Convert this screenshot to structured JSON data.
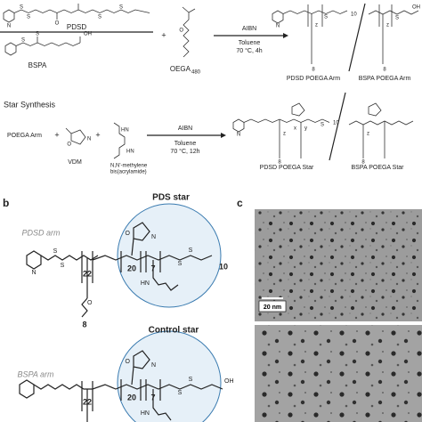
{
  "atoms": {
    "S": "S",
    "O": "O",
    "N": "N",
    "HN": "HN",
    "OH": "OH"
  },
  "panel_a": {
    "arm_synthesis": {
      "reagents": {
        "pdsd": "PDSD",
        "bspa": "BSPA",
        "oega": "OEGA",
        "oega_subscript": "480",
        "plus": "+"
      },
      "conditions": [
        "AIBN",
        "Toluene",
        "70 °C, 4h"
      ],
      "products": [
        "PDSD POEGA Arm",
        "BSPA POEGA Arm"
      ],
      "repeat_labels": {
        "pdsd_end": "10",
        "z": "z",
        "eg": "8"
      }
    },
    "star_synthesis": {
      "title": "Star Synthesis",
      "reactants": [
        "POEGA Arm",
        "VDM",
        "N,N'-methylene",
        "bis(acrylamide)"
      ],
      "plus": "+",
      "conditions": [
        "AIBN",
        "Toluene",
        "70 °C, 12h"
      ],
      "products": [
        "PDSD POEGA Star",
        "BSPA POEGA Star"
      ],
      "repeat_labels": {
        "x": "x",
        "y": "y",
        "z": "z",
        "end": "10",
        "eg": "8"
      }
    }
  },
  "panel_b": {
    "label": "b",
    "pds_star": {
      "title": "PDS star",
      "arm": "PDSD arm",
      "repeats": [
        "22",
        "20",
        "7",
        "10",
        "8"
      ]
    },
    "control_star": {
      "title": "Control star",
      "arm": "BSPA arm",
      "repeats": [
        "22",
        "20",
        "7"
      ]
    }
  },
  "panel_c": {
    "label": "c",
    "scale_bar": "20 nm"
  }
}
